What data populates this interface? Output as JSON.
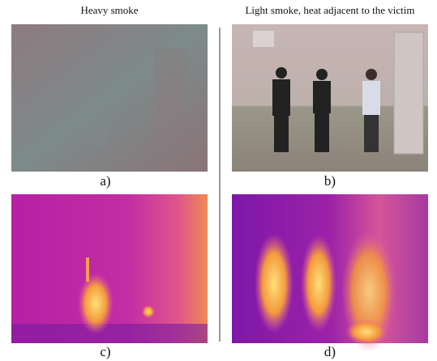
{
  "columns": [
    {
      "title": "Heavy smoke"
    },
    {
      "title": "Light smoke, heat adjacent to the victim"
    }
  ],
  "panels": [
    {
      "label": "a)"
    },
    {
      "label": "b)"
    },
    {
      "label": "c)"
    },
    {
      "label": "d)"
    }
  ]
}
